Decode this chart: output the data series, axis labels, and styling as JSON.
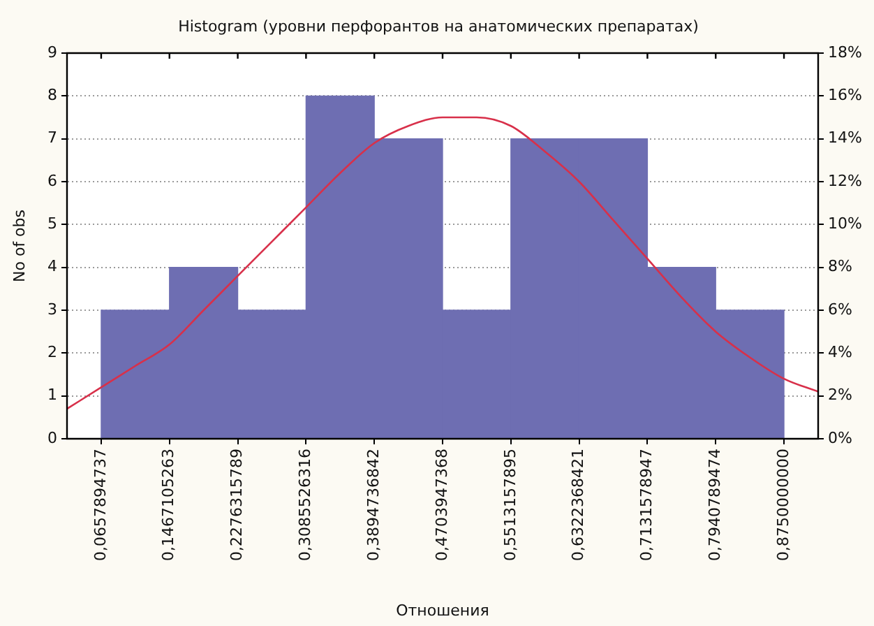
{
  "chart_data": {
    "type": "histogram",
    "title": "Histogram (уровни перфорантов на анатомических препаратах)",
    "xlabel": "Отношения",
    "ylabel": "No of obs",
    "bins": [
      0.0657894737,
      0.1467105263,
      0.2276315789,
      0.3085526316,
      0.3894736842,
      0.4703947368,
      0.5513157895,
      0.6322368421,
      0.7131578947,
      0.7940789474,
      0.875
    ],
    "series": [
      {
        "color": "#6e6eb2",
        "values": [
          3,
          4,
          3,
          8,
          7,
          3,
          7,
          7,
          4,
          3
        ]
      },
      {
        "type": "line",
        "color": "#d8304a",
        "x": [
          0.0253,
          0.0658,
          0.1062,
          0.1467,
          0.1872,
          0.2276,
          0.2681,
          0.3086,
          0.349,
          0.3895,
          0.4299,
          0.4704,
          0.5108,
          0.5513,
          0.5918,
          0.6322,
          0.6727,
          0.7132,
          0.7536,
          0.7941,
          0.8345,
          0.875,
          0.9155
        ],
        "values": [
          0.7,
          1.2,
          1.7,
          2.2,
          3.0,
          3.8,
          4.6,
          5.4,
          6.2,
          6.9,
          7.3,
          7.5,
          7.5,
          7.3,
          6.7,
          6.0,
          5.1,
          4.2,
          3.3,
          2.5,
          1.9,
          1.4,
          1.1
        ]
      }
    ],
    "xlim": [
      0.0253,
      0.9155
    ],
    "xticks": [
      {
        "value": 0.0657894737,
        "label": "0,0657894737"
      },
      {
        "value": 0.1467105263,
        "label": "0,1467105263"
      },
      {
        "value": 0.2276315789,
        "label": "0,2276315789"
      },
      {
        "value": 0.3085526316,
        "label": "0,3085526316"
      },
      {
        "value": 0.3894736842,
        "label": "0,3894736842"
      },
      {
        "value": 0.4703947368,
        "label": "0,4703947368"
      },
      {
        "value": 0.5513157895,
        "label": "0,5513157895"
      },
      {
        "value": 0.6322368421,
        "label": "0,6322368421"
      },
      {
        "value": 0.7131578947,
        "label": "0,7131578947"
      },
      {
        "value": 0.7940789474,
        "label": "0,7940789474"
      },
      {
        "value": 0.875,
        "label": "0,8750000000"
      }
    ],
    "ylim": [
      0,
      9
    ],
    "yticks": [
      0,
      1,
      2,
      3,
      4,
      5,
      6,
      7,
      8,
      9
    ],
    "y2lim": [
      0,
      18
    ],
    "y2ticks": [
      {
        "value": 0,
        "label": "0%"
      },
      {
        "value": 2,
        "label": "2%"
      },
      {
        "value": 4,
        "label": "4%"
      },
      {
        "value": 6,
        "label": "6%"
      },
      {
        "value": 8,
        "label": "8%"
      },
      {
        "value": 10,
        "label": "10%"
      },
      {
        "value": 12,
        "label": "12%"
      },
      {
        "value": 14,
        "label": "14%"
      },
      {
        "value": 16,
        "label": "16%"
      },
      {
        "value": 18,
        "label": "18%"
      }
    ],
    "grid": "y"
  }
}
